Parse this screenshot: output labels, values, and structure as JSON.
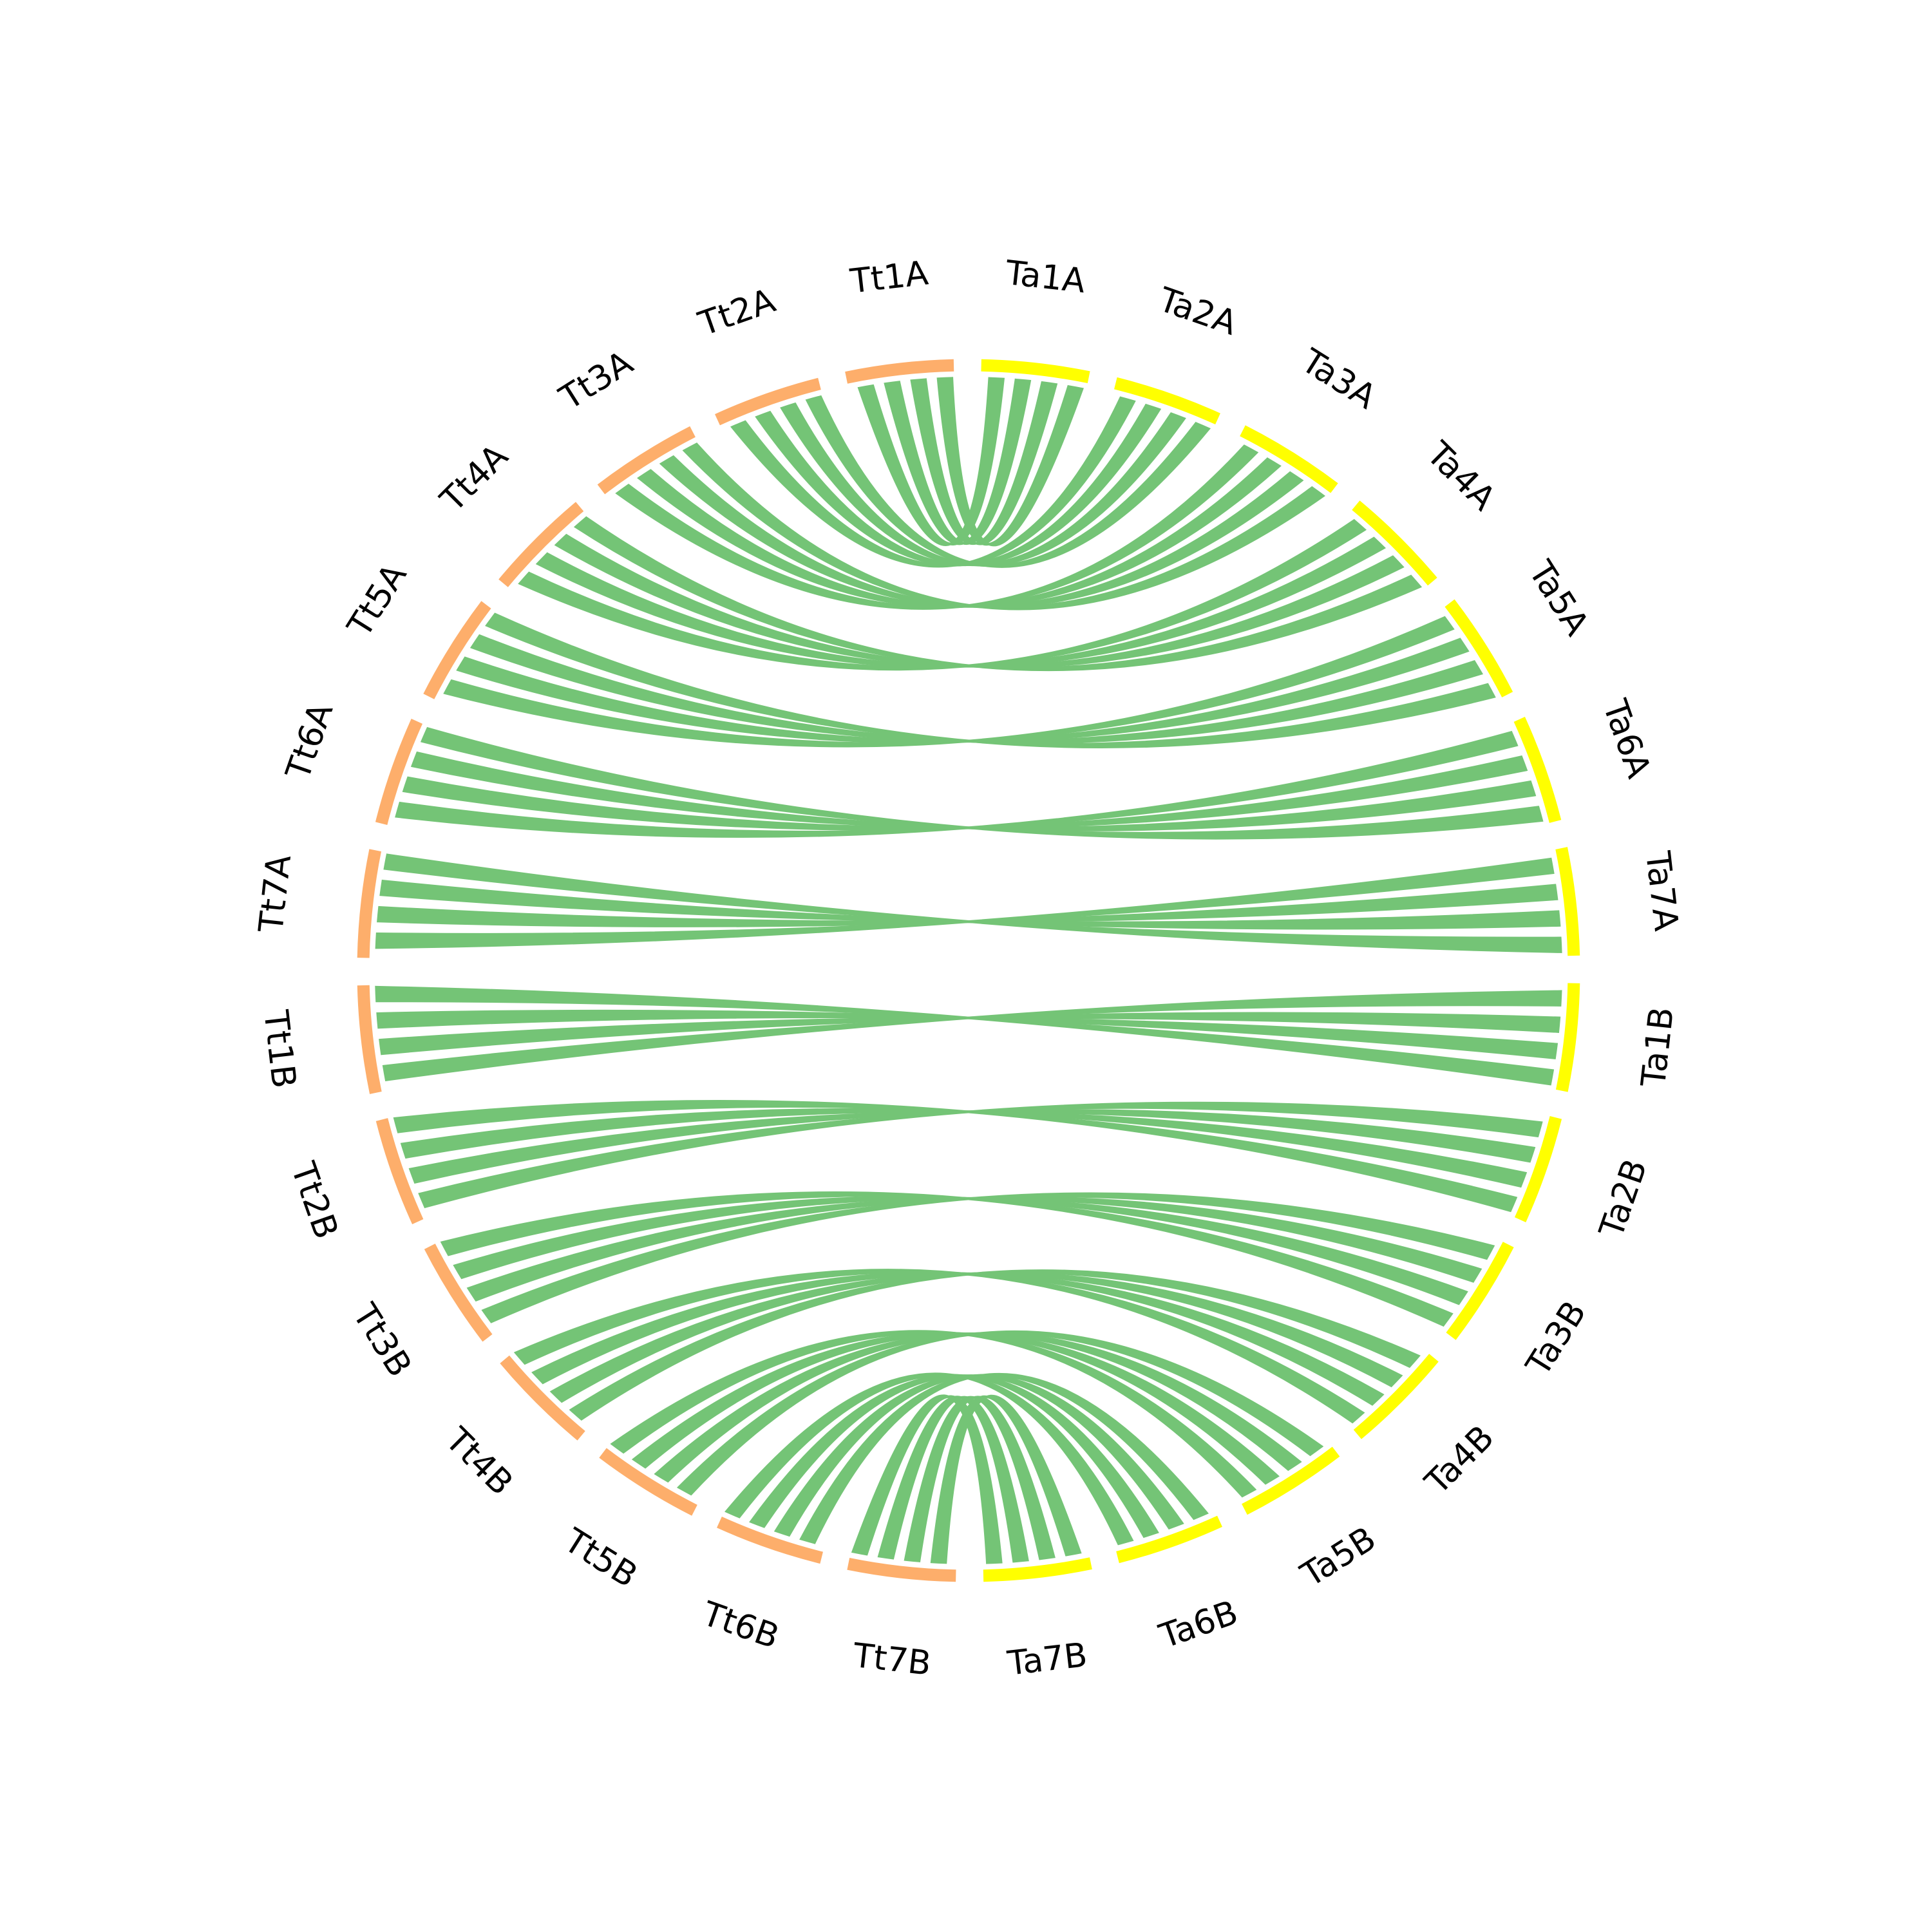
{
  "segments": [
    {
      "label": "Ta1A",
      "color": "#ffff00"
    },
    {
      "label": "Ta2A",
      "color": "#ffff00"
    },
    {
      "label": "Ta3A",
      "color": "#ffff00"
    },
    {
      "label": "Ta4A",
      "color": "#ffff00"
    },
    {
      "label": "Ta5A",
      "color": "#ffff00"
    },
    {
      "label": "Ta6A",
      "color": "#ffff00"
    },
    {
      "label": "Ta7A",
      "color": "#ffff00"
    },
    {
      "label": "Ta1B",
      "color": "#ffff00"
    },
    {
      "label": "Ta2B",
      "color": "#ffff00"
    },
    {
      "label": "Ta3B",
      "color": "#ffff00"
    },
    {
      "label": "Ta4B",
      "color": "#ffff00"
    },
    {
      "label": "Ta5B",
      "color": "#ffff00"
    },
    {
      "label": "Ta6B",
      "color": "#ffff00"
    },
    {
      "label": "Ta7B",
      "color": "#ffff00"
    },
    {
      "label": "Tt7B",
      "color": "#fdae6b"
    },
    {
      "label": "Tt6B",
      "color": "#fdae6b"
    },
    {
      "label": "Tt5B",
      "color": "#fdae6b"
    },
    {
      "label": "Tt4B",
      "color": "#fdae6b"
    },
    {
      "label": "Tt3B",
      "color": "#fdae6b"
    },
    {
      "label": "Tt2B",
      "color": "#fdae6b"
    },
    {
      "label": "Tt1B",
      "color": "#fdae6b"
    },
    {
      "label": "Tt7A",
      "color": "#fdae6b"
    },
    {
      "label": "Tt6A",
      "color": "#fdae6b"
    },
    {
      "label": "Tt5A",
      "color": "#fdae6b"
    },
    {
      "label": "Tt4A",
      "color": "#fdae6b"
    },
    {
      "label": "Tt3A",
      "color": "#fdae6b"
    },
    {
      "label": "Tt2A",
      "color": "#fdae6b"
    },
    {
      "label": "Tt1A",
      "color": "#fdae6b"
    }
  ],
  "link_color": "#74c476"
}
